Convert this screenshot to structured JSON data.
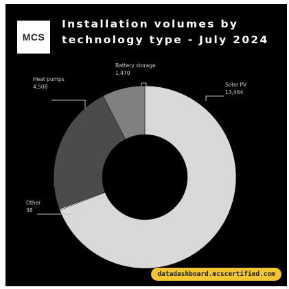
{
  "brand": {
    "logo_text": "MCS",
    "url": "datadashboard.mcscertified.com"
  },
  "colors": {
    "background": "#000000",
    "solar": "#d9d9d9",
    "heat": "#4b4b4b",
    "battery": "#808080",
    "other": "#ffffff",
    "url_badge": "#f2c531"
  },
  "chart_data": {
    "type": "pie",
    "donut": true,
    "title_lines": [
      "Installation volumes by",
      "technology type - July 2024"
    ],
    "slices": [
      {
        "name": "Solar PV",
        "value": 13464
      },
      {
        "name": "Other",
        "value": 38
      },
      {
        "name": "Heat pumps",
        "value": 4508
      },
      {
        "name": "Battery storage",
        "value": 1470
      }
    ],
    "value_labels": [
      "13,464",
      "38",
      "4,508",
      "1,470"
    ]
  }
}
